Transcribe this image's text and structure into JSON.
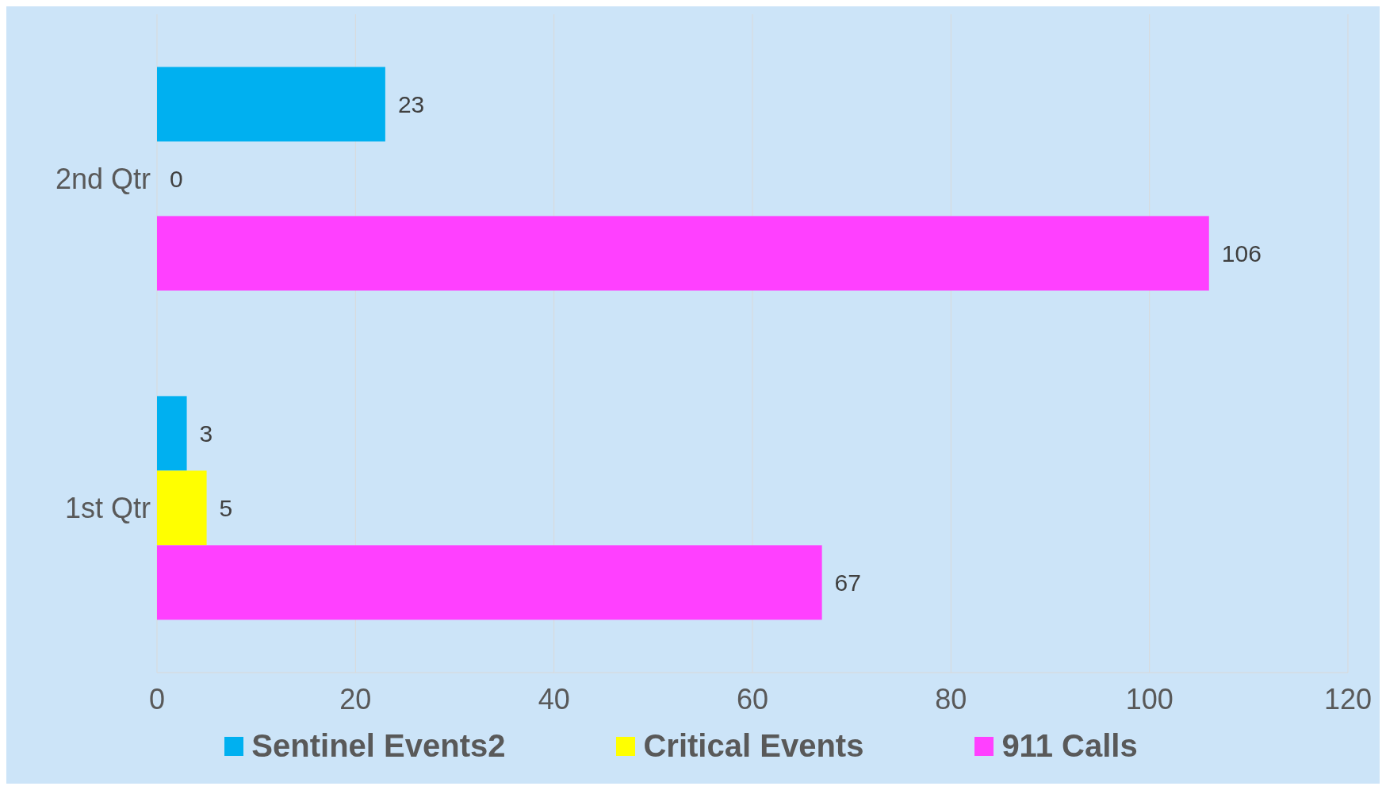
{
  "chart_data": {
    "type": "bar",
    "orientation": "horizontal",
    "categories": [
      "2nd Qtr",
      "1st Qtr"
    ],
    "series": [
      {
        "name": "Sentinel Events2",
        "color": "#00b0f0",
        "values": [
          23,
          3
        ]
      },
      {
        "name": "Critical Events",
        "color": "#ffff00",
        "values": [
          0,
          5
        ]
      },
      {
        "name": "911 Calls",
        "color": "#ff40ff",
        "values": [
          106,
          67
        ]
      }
    ],
    "xlim": [
      0,
      120
    ],
    "xticks": [
      0,
      20,
      40,
      60,
      80,
      100,
      120
    ],
    "grid": "x",
    "legend": "bottom",
    "data_labels": true
  }
}
